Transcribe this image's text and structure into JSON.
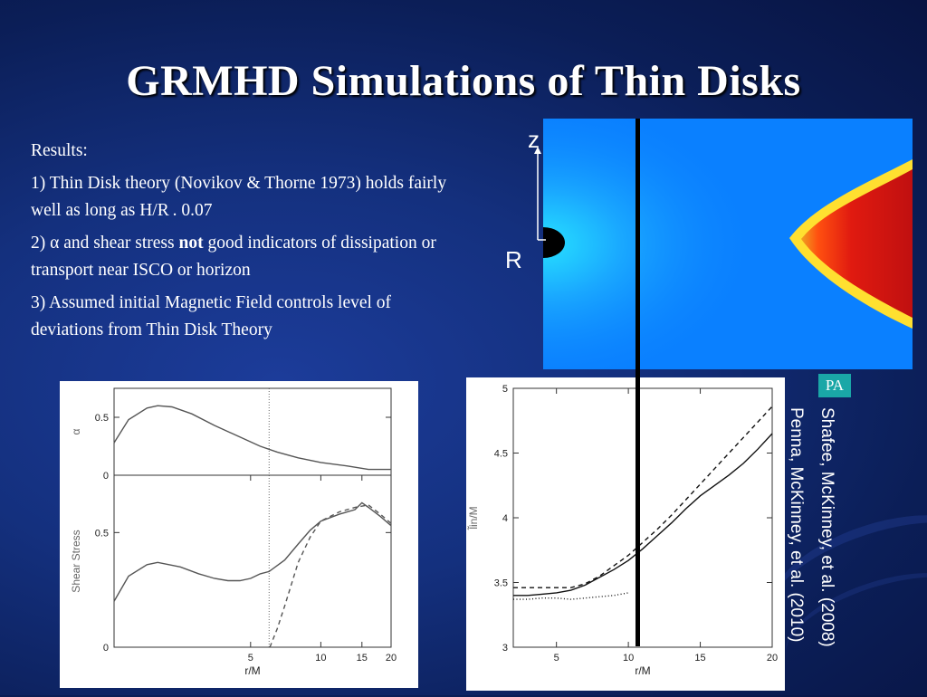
{
  "slide": {
    "title": "GRMHD Simulations of Thin Disks",
    "bullets": {
      "heading": "Results:",
      "item1": "1) Thin Disk theory  (Novikov & Thorne 1973) holds fairly well as long as H/R . 0.07",
      "item2_prefix": "2) ",
      "item2_alpha": "α",
      "item2_mid": " and shear stress ",
      "item2_bold": "not",
      "item2_suffix": " good indicators of dissipation or transport near ISCO or horizon",
      "item3": "3) Assumed initial Magnetic Field controls level of deviations from Thin Disk Theory"
    },
    "sim_image": {
      "z_label": "z",
      "r_label": "R"
    },
    "badge": "PA",
    "citations": {
      "shafee": "Shafee, McKinney, et al. (2008)",
      "penna": "Penna, McKinney, et al. (2010)"
    },
    "colors": {
      "background": "#14307e",
      "sim_blue": "#0a82ff",
      "sim_red": "#cc1010",
      "badge": "#1aa7a7"
    }
  },
  "chart_data": [
    {
      "type": "line",
      "panel": "alpha",
      "ylabel": "α",
      "xscale": "log",
      "xlim": [
        1.3,
        20
      ],
      "ylim": [
        0,
        0.75
      ],
      "yticks": [
        {
          "v": 0,
          "label": "0"
        },
        {
          "v": 0.5,
          "label": "0.5"
        }
      ],
      "vline_x": 6,
      "series": [
        {
          "style": "solid",
          "x": [
            1.3,
            1.5,
            1.8,
            2.0,
            2.3,
            2.8,
            3.5,
            4.5,
            5.5,
            6.5,
            8,
            10,
            13,
            16,
            20
          ],
          "y": [
            0.28,
            0.48,
            0.58,
            0.6,
            0.59,
            0.53,
            0.43,
            0.33,
            0.25,
            0.2,
            0.15,
            0.11,
            0.08,
            0.05,
            0.05
          ]
        }
      ]
    },
    {
      "type": "line",
      "panel": "shear-stress",
      "xlabel": "r/M",
      "ylabel": "Shear Stress",
      "xscale": "log",
      "xlim": [
        1.3,
        20
      ],
      "ylim": [
        0,
        0.75
      ],
      "xticks": [
        {
          "v": 5,
          "label": "5"
        },
        {
          "v": 10,
          "label": "10"
        },
        {
          "v": 15,
          "label": "15"
        },
        {
          "v": 20,
          "label": "20"
        }
      ],
      "yticks": [
        {
          "v": 0,
          "label": "0"
        },
        {
          "v": 0.5,
          "label": "0.5"
        }
      ],
      "vline_x": 6,
      "series": [
        {
          "style": "solid",
          "x": [
            1.3,
            1.5,
            1.8,
            2.0,
            2.5,
            3.0,
            3.5,
            4.0,
            4.5,
            5.0,
            5.5,
            6.0,
            7.0,
            8.0,
            9.0,
            10,
            12,
            14,
            15,
            16,
            18,
            20
          ],
          "y": [
            0.2,
            0.31,
            0.36,
            0.37,
            0.35,
            0.32,
            0.3,
            0.29,
            0.29,
            0.3,
            0.32,
            0.33,
            0.38,
            0.45,
            0.51,
            0.55,
            0.58,
            0.6,
            0.63,
            0.61,
            0.57,
            0.53
          ]
        },
        {
          "style": "dashed",
          "x": [
            6.05,
            6.5,
            7,
            8,
            9,
            10,
            12,
            14,
            16,
            18,
            20
          ],
          "y": [
            0.0,
            0.08,
            0.18,
            0.37,
            0.48,
            0.55,
            0.59,
            0.61,
            0.62,
            0.58,
            0.54
          ]
        }
      ]
    },
    {
      "type": "line",
      "panel": "specific-angular-momentum",
      "xlabel": "r/M",
      "ylabel": "l̃in/M",
      "xlim": [
        2,
        20
      ],
      "ylim": [
        3,
        5
      ],
      "xticks": [
        {
          "v": 5,
          "label": "5"
        },
        {
          "v": 10,
          "label": "10"
        },
        {
          "v": 15,
          "label": "15"
        },
        {
          "v": 20,
          "label": "20"
        }
      ],
      "yticks": [
        {
          "v": 3,
          "label": "3"
        },
        {
          "v": 3.5,
          "label": "3.5"
        },
        {
          "v": 4,
          "label": "4"
        },
        {
          "v": 4.5,
          "label": "4.5"
        },
        {
          "v": 5,
          "label": "5"
        }
      ],
      "series": [
        {
          "style": "solid",
          "x": [
            2,
            3,
            4,
            5,
            6,
            7,
            8,
            9,
            10,
            11,
            12,
            13,
            14,
            15,
            16,
            17,
            18,
            19,
            20
          ],
          "y": [
            3.4,
            3.4,
            3.41,
            3.42,
            3.44,
            3.48,
            3.54,
            3.6,
            3.67,
            3.76,
            3.86,
            3.96,
            4.07,
            4.17,
            4.25,
            4.33,
            4.42,
            4.53,
            4.65
          ]
        },
        {
          "style": "dashed",
          "x": [
            2,
            3,
            4,
            5,
            6,
            7,
            8,
            9,
            10,
            11,
            12,
            13,
            14,
            15,
            16,
            17,
            18,
            19,
            20
          ],
          "y": [
            3.46,
            3.46,
            3.46,
            3.46,
            3.46,
            3.49,
            3.55,
            3.63,
            3.71,
            3.81,
            3.91,
            4.02,
            4.14,
            4.26,
            4.38,
            4.5,
            4.62,
            4.74,
            4.86
          ]
        },
        {
          "style": "dotted",
          "x": [
            2,
            3,
            4,
            5,
            6,
            7,
            8,
            9,
            10
          ],
          "y": [
            3.37,
            3.37,
            3.38,
            3.38,
            3.37,
            3.38,
            3.39,
            3.4,
            3.42
          ]
        }
      ]
    }
  ]
}
